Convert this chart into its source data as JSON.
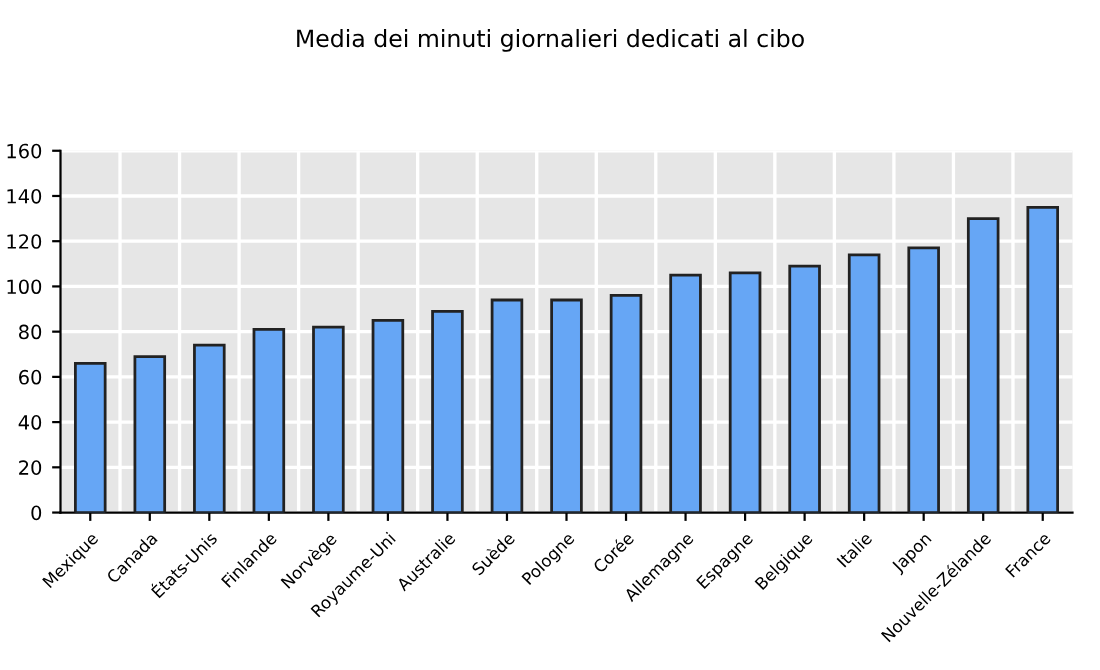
{
  "chart_data": {
    "type": "bar",
    "title": "Media dei minuti giornalieri dedicati al cibo",
    "categories": [
      "Mexique",
      "Canada",
      "États-Unis",
      "Finlande",
      "Norvège",
      "Royaume-Uni",
      "Australie",
      "Suède",
      "Pologne",
      "Corée",
      "Allemagne",
      "Espagne",
      "Belgique",
      "Italie",
      "Japon",
      "Nouvelle-Zélande",
      "France"
    ],
    "values": [
      66,
      69,
      74,
      81,
      82,
      85,
      89,
      94,
      94,
      96,
      105,
      106,
      109,
      114,
      117,
      130,
      135
    ],
    "color": "#66a6f5",
    "ylim": [
      0,
      160
    ],
    "yticks": [
      0,
      20,
      40,
      60,
      80,
      100,
      120,
      140,
      160
    ],
    "grid": true
  }
}
